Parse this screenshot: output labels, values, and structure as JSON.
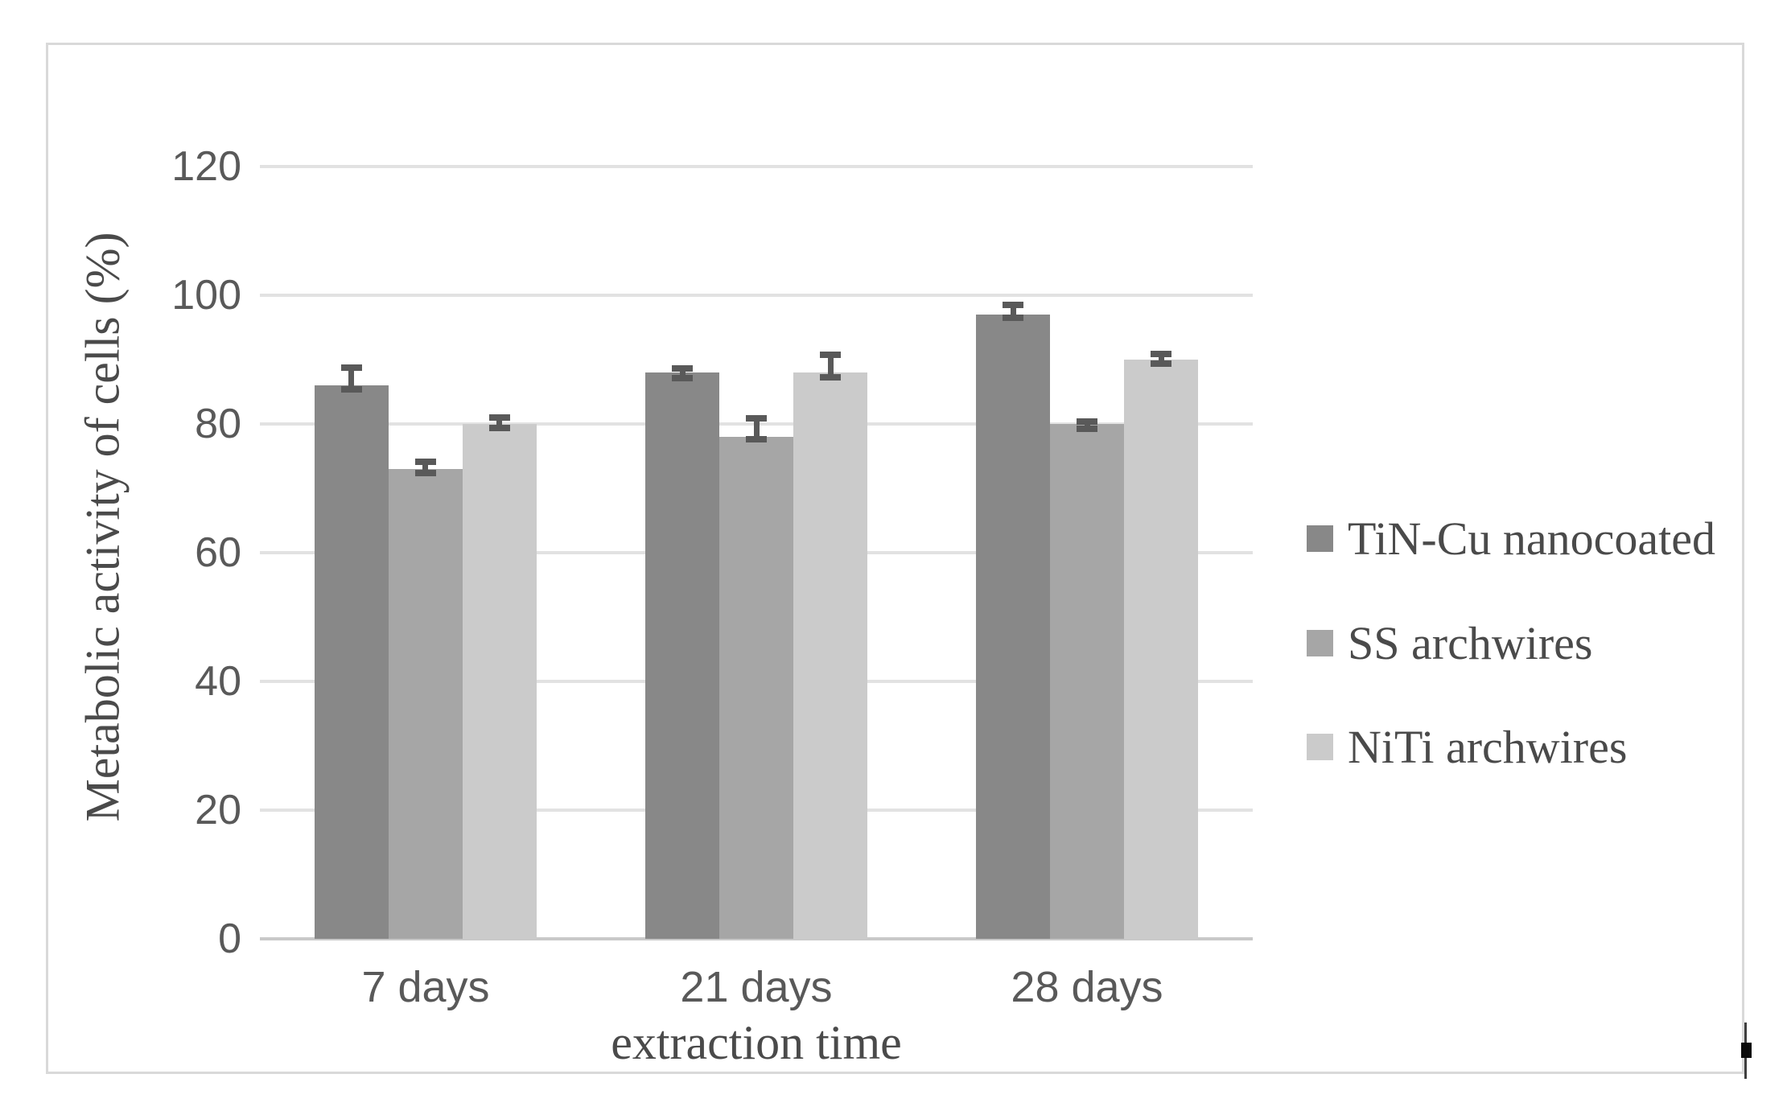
{
  "chart_data": {
    "type": "bar",
    "title": "",
    "categories": [
      "7 days",
      "21 days",
      "28 days"
    ],
    "series": [
      {
        "name": "TiN-Cu nanocoated",
        "color": "#888888",
        "values": [
          86,
          88,
          97
        ],
        "err_up": [
          3.2,
          1.1,
          2.0
        ],
        "err_down": [
          1.1,
          1.4,
          1.0
        ]
      },
      {
        "name": "SS archwires",
        "color": "#a6a6a6",
        "values": [
          73,
          78,
          80
        ],
        "err_up": [
          1.6,
          3.4,
          0.9
        ],
        "err_down": [
          1.1,
          0.9,
          1.2
        ]
      },
      {
        "name": "NiTi archwires",
        "color": "#cbcbcb",
        "values": [
          80,
          88,
          90
        ],
        "err_up": [
          1.5,
          3.3,
          1.4
        ],
        "err_down": [
          1.1,
          1.3,
          1.1
        ]
      }
    ],
    "xlabel": "extraction time",
    "ylabel": "Metabolic activity of cells (%)",
    "ylim": [
      0,
      120
    ],
    "yticks": [
      0,
      20,
      40,
      60,
      80,
      100,
      120
    ],
    "grid": true,
    "legend_position": "right-middle",
    "error_bars": true,
    "error_bar_color": "#595959",
    "gridline_color": "#e2e2e2",
    "axis_line_color": "#c9c9c9",
    "tick_text_color": "#595959",
    "title_text_color": "#4a4a4a",
    "frame_border_color": "#d9d9d9"
  }
}
